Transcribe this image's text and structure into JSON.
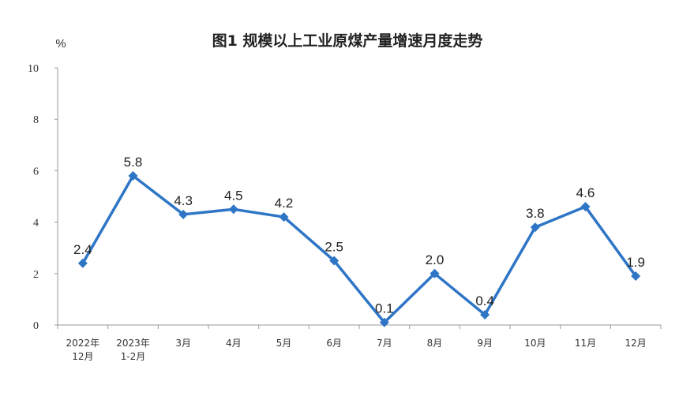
{
  "chart_data": {
    "type": "line",
    "title": "图1  规模以上工业原煤产量增速月度走势",
    "ylabel": "%",
    "xlabel": "",
    "ylim": [
      0,
      10
    ],
    "yticks": [
      0,
      2,
      4,
      6,
      8,
      10
    ],
    "grid": false,
    "legend": "none",
    "color": "#2E75C6",
    "categories": [
      [
        "2022年",
        "12月"
      ],
      [
        "2023年",
        "1-2月"
      ],
      [
        "3月"
      ],
      [
        "4月"
      ],
      [
        "5月"
      ],
      [
        "6月"
      ],
      [
        "7月"
      ],
      [
        "8月"
      ],
      [
        "9月"
      ],
      [
        "10月"
      ],
      [
        "11月"
      ],
      [
        "12月"
      ]
    ],
    "series": [
      {
        "values": [
          2.4,
          5.8,
          4.3,
          4.5,
          4.2,
          2.5,
          0.1,
          2.0,
          0.4,
          3.8,
          4.6,
          1.9
        ],
        "labels": [
          "2.4",
          "5.8",
          "4.3",
          "4.5",
          "4.2",
          "2.5",
          "0.1",
          "2.0",
          "0.4",
          "3.8",
          "4.6",
          "1.9"
        ]
      }
    ]
  }
}
